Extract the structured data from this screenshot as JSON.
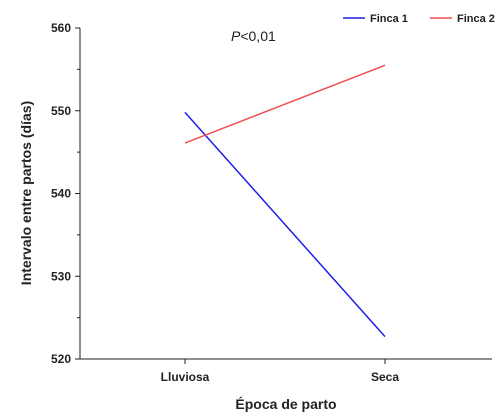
{
  "chart_data": {
    "type": "line",
    "categories": [
      "Lluviosa",
      "Seca"
    ],
    "series": [
      {
        "name": "Finca 1",
        "values": [
          549.8,
          522.7
        ],
        "color": "#1f1fe8"
      },
      {
        "name": "Finca 2",
        "values": [
          546.1,
          555.5
        ],
        "color": "#f05050"
      }
    ],
    "xlabel": "Época de parto",
    "ylabel": "Intervalo entre partos (días)",
    "ylim": [
      520,
      560
    ],
    "yticks": [
      520,
      530,
      540,
      550,
      560
    ],
    "legend_position": "top-right",
    "grid": false,
    "annotation": {
      "prefix": "P",
      "suffix": "<0,01"
    }
  }
}
